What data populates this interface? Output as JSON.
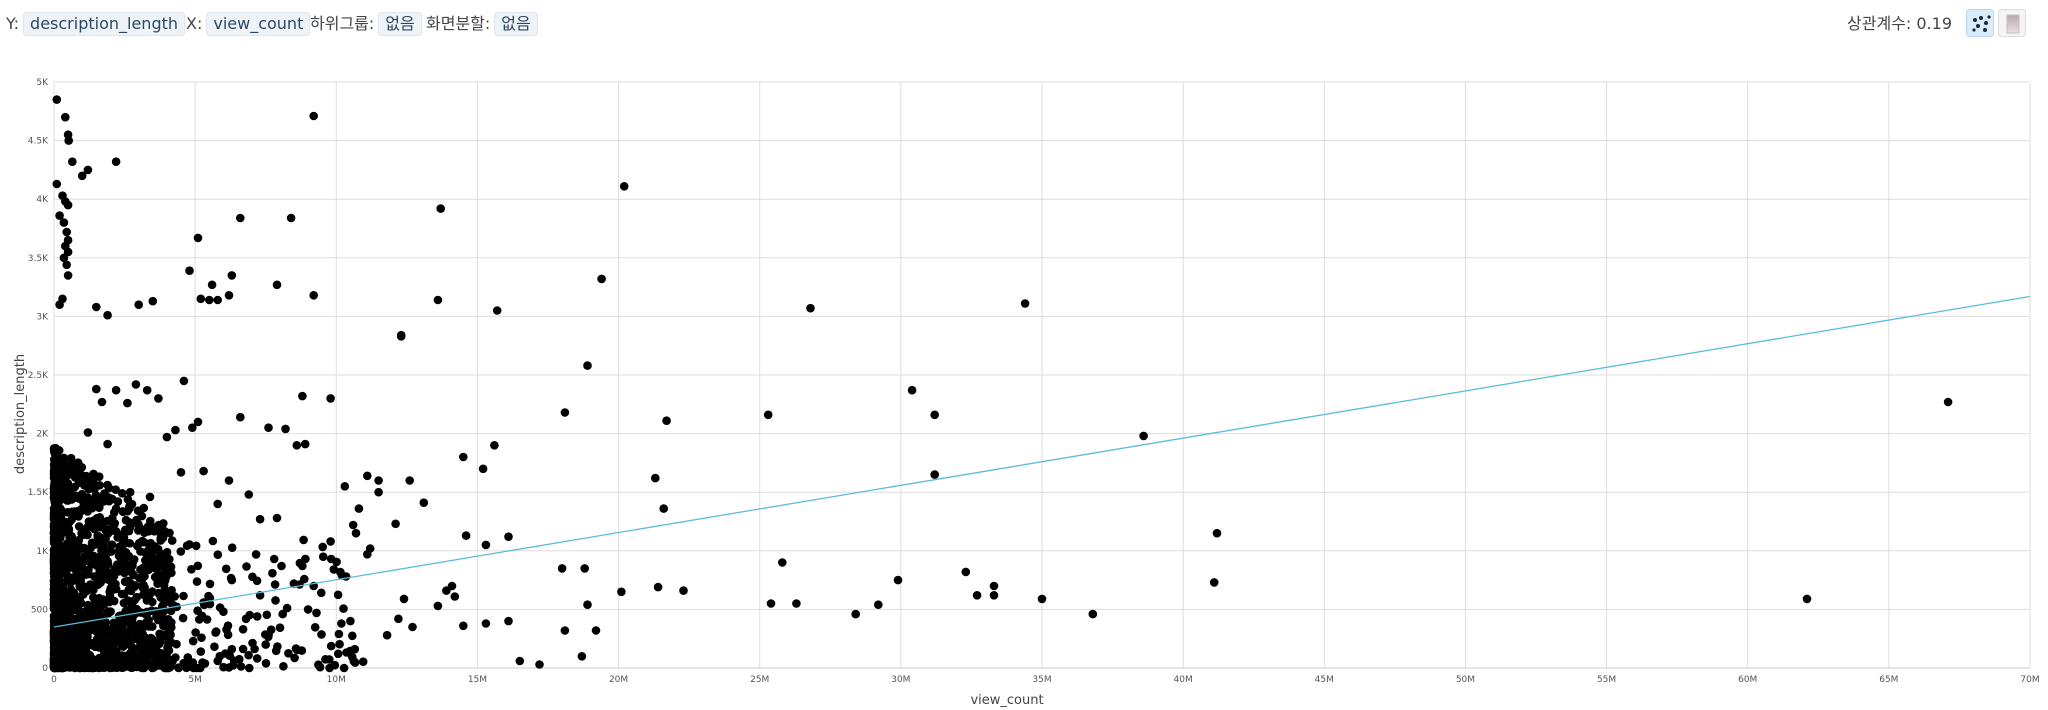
{
  "controls": {
    "y_label": "Y:",
    "y_value": "description_length",
    "x_label": "X:",
    "x_value": "view_count",
    "subgroup_label": "하위그룹:",
    "subgroup_value": "없음",
    "split_label": "화면분할:",
    "split_value": "없음",
    "correlation_label": "상관계수:",
    "correlation_value": "0.19",
    "scatter_icon": "scatter-plot-icon",
    "heatmap_icon": "heatmap-icon"
  },
  "colors": {
    "points": "#000000",
    "trend": "#5bbcd9",
    "grid": "#dddddd",
    "active_button": "#d9ecfa"
  },
  "chart_data": {
    "type": "scatter",
    "xlabel": "view_count",
    "ylabel": "description_length",
    "xlim": [
      0,
      70000000
    ],
    "ylim": [
      0,
      5000
    ],
    "x_ticks": [
      0,
      5000000,
      10000000,
      15000000,
      20000000,
      25000000,
      30000000,
      35000000,
      40000000,
      45000000,
      50000000,
      55000000,
      60000000,
      65000000,
      70000000
    ],
    "x_tick_labels": [
      "0",
      "5M",
      "10M",
      "15M",
      "20M",
      "25M",
      "30M",
      "35M",
      "40M",
      "45M",
      "50M",
      "55M",
      "60M",
      "65M",
      "70M"
    ],
    "y_ticks": [
      0,
      500,
      1000,
      1500,
      2000,
      2500,
      3000,
      3500,
      4000,
      4500,
      5000
    ],
    "y_tick_labels": [
      "0",
      "500",
      "1K",
      "1.5K",
      "2K",
      "2.5K",
      "3K",
      "3.5K",
      "4K",
      "4.5K",
      "5K"
    ],
    "grid": true,
    "trend_line": {
      "x": [
        0,
        70000000
      ],
      "y": [
        350,
        3170
      ]
    },
    "points": [
      [
        100000,
        4850
      ],
      [
        400000,
        4700
      ],
      [
        500000,
        4550
      ],
      [
        520000,
        4500
      ],
      [
        650000,
        4320
      ],
      [
        1000000,
        4200
      ],
      [
        1200000,
        4250
      ],
      [
        2200000,
        4320
      ],
      [
        100000,
        4130
      ],
      [
        300000,
        4030
      ],
      [
        400000,
        3980
      ],
      [
        500000,
        3950
      ],
      [
        200000,
        3860
      ],
      [
        350000,
        3800
      ],
      [
        450000,
        3720
      ],
      [
        500000,
        3650
      ],
      [
        400000,
        3600
      ],
      [
        500000,
        3550
      ],
      [
        350000,
        3500
      ],
      [
        450000,
        3440
      ],
      [
        500000,
        3350
      ],
      [
        300000,
        3150
      ],
      [
        200000,
        3100
      ],
      [
        1500000,
        3080
      ],
      [
        1900000,
        3010
      ],
      [
        3000000,
        3100
      ],
      [
        3500000,
        3130
      ],
      [
        9200000,
        4710
      ],
      [
        6600000,
        3840
      ],
      [
        8400000,
        3840
      ],
      [
        5100000,
        3670
      ],
      [
        4800000,
        3390
      ],
      [
        5600000,
        3270
      ],
      [
        6300000,
        3350
      ],
      [
        6200000,
        3180
      ],
      [
        7900000,
        3270
      ],
      [
        9200000,
        3180
      ],
      [
        5200000,
        3150
      ],
      [
        5500000,
        3140
      ],
      [
        5800000,
        3140
      ],
      [
        13700000,
        3920
      ],
      [
        20200000,
        4110
      ],
      [
        19400000,
        3320
      ],
      [
        13600000,
        3140
      ],
      [
        15700000,
        3050
      ],
      [
        12300000,
        2830
      ],
      [
        18900000,
        2580
      ],
      [
        26800000,
        3070
      ],
      [
        34400000,
        3110
      ],
      [
        30400000,
        2370
      ],
      [
        31200000,
        2160
      ],
      [
        25300000,
        2160
      ],
      [
        21700000,
        2110
      ],
      [
        18100000,
        2180
      ],
      [
        38600000,
        1980
      ],
      [
        67100000,
        2270
      ],
      [
        31200000,
        1650
      ],
      [
        21300000,
        1620
      ],
      [
        21600000,
        1360
      ],
      [
        41200000,
        1150
      ],
      [
        15600000,
        1900
      ],
      [
        14500000,
        1800
      ],
      [
        15200000,
        1700
      ],
      [
        13100000,
        1410
      ],
      [
        14600000,
        1130
      ],
      [
        15300000,
        1050
      ],
      [
        16100000,
        1120
      ],
      [
        25800000,
        900
      ],
      [
        29900000,
        750
      ],
      [
        32300000,
        820
      ],
      [
        33300000,
        700
      ],
      [
        32700000,
        620
      ],
      [
        33300000,
        620
      ],
      [
        35000000,
        590
      ],
      [
        41100000,
        730
      ],
      [
        36800000,
        460
      ],
      [
        62100000,
        590
      ],
      [
        28400000,
        460
      ],
      [
        29200000,
        540
      ],
      [
        26300000,
        550
      ],
      [
        25400000,
        550
      ],
      [
        22300000,
        660
      ],
      [
        21400000,
        690
      ],
      [
        20100000,
        650
      ],
      [
        18900000,
        540
      ],
      [
        19200000,
        320
      ],
      [
        18800000,
        850
      ],
      [
        18000000,
        850
      ],
      [
        18100000,
        320
      ],
      [
        18700000,
        100
      ],
      [
        17200000,
        30
      ],
      [
        16500000,
        60
      ],
      [
        16100000,
        400
      ],
      [
        15300000,
        380
      ],
      [
        14500000,
        360
      ],
      [
        13600000,
        530
      ],
      [
        12700000,
        350
      ],
      [
        12200000,
        420
      ],
      [
        11800000,
        280
      ],
      [
        11500000,
        1600
      ],
      [
        11100000,
        1640
      ],
      [
        10800000,
        1360
      ],
      [
        9800000,
        2300
      ],
      [
        8800000,
        2320
      ],
      [
        8200000,
        2040
      ],
      [
        8900000,
        1910
      ],
      [
        8600000,
        1900
      ],
      [
        7600000,
        2050
      ],
      [
        6600000,
        2140
      ],
      [
        7900000,
        1280
      ],
      [
        7300000,
        1270
      ],
      [
        6900000,
        1480
      ],
      [
        10600000,
        1220
      ],
      [
        10300000,
        1550
      ],
      [
        9800000,
        1080
      ],
      [
        9200000,
        700
      ],
      [
        8800000,
        870
      ],
      [
        8500000,
        720
      ],
      [
        7800000,
        930
      ],
      [
        7300000,
        620
      ],
      [
        6800000,
        420
      ],
      [
        6300000,
        160
      ],
      [
        5800000,
        60
      ],
      [
        5200000,
        140
      ],
      [
        4300000,
        90
      ],
      [
        4100000,
        300
      ],
      [
        4600000,
        2450
      ],
      [
        4900000,
        2050
      ],
      [
        5100000,
        2100
      ],
      [
        4300000,
        2030
      ],
      [
        4000000,
        1970
      ],
      [
        3700000,
        2300
      ],
      [
        3300000,
        2370
      ],
      [
        2900000,
        2420
      ],
      [
        2600000,
        2260
      ],
      [
        2200000,
        2370
      ],
      [
        1700000,
        2270
      ],
      [
        1500000,
        2380
      ],
      [
        1900000,
        1910
      ],
      [
        1200000,
        2010
      ],
      [
        2700000,
        1500
      ],
      [
        3400000,
        1460
      ],
      [
        4500000,
        1670
      ],
      [
        5300000,
        1680
      ],
      [
        5800000,
        1400
      ],
      [
        6200000,
        1600
      ],
      [
        12300000,
        2840
      ],
      [
        10700000,
        1150
      ],
      [
        12100000,
        1230
      ],
      [
        11500000,
        1500
      ],
      [
        11200000,
        1020
      ],
      [
        12600000,
        1600
      ],
      [
        14200000,
        610
      ],
      [
        14100000,
        700
      ],
      [
        13900000,
        660
      ],
      [
        12400000,
        590
      ],
      [
        11100000,
        970
      ],
      [
        10200000,
        790
      ],
      [
        10500000,
        400
      ],
      [
        9300000,
        470
      ],
      [
        6300000,
        750
      ],
      [
        5300000,
        560
      ],
      [
        6000000,
        480
      ],
      [
        7200000,
        440
      ],
      [
        6700000,
        330
      ],
      [
        7500000,
        200
      ],
      [
        8100000,
        460
      ],
      [
        9000000,
        500
      ]
    ]
  }
}
